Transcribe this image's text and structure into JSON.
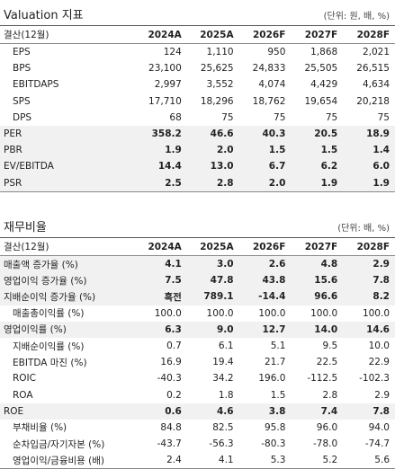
{
  "sections": [
    {
      "title": "Valuation 지표",
      "unit": "(단위: 원, 배, %)",
      "header": [
        "결산(12월)",
        "2024A",
        "2025A",
        "2026F",
        "2027F",
        "2028F"
      ],
      "rows": [
        {
          "label": "EPS",
          "values": [
            "124",
            "1,110",
            "950",
            "1,868",
            "2,021"
          ],
          "bold": false
        },
        {
          "label": "BPS",
          "values": [
            "23,100",
            "25,625",
            "24,833",
            "25,505",
            "26,515"
          ],
          "bold": false
        },
        {
          "label": "EBITDAPS",
          "values": [
            "2,997",
            "3,552",
            "4,074",
            "4,429",
            "4,634"
          ],
          "bold": false
        },
        {
          "label": "SPS",
          "values": [
            "17,710",
            "18,296",
            "18,762",
            "19,654",
            "20,218"
          ],
          "bold": false
        },
        {
          "label": "DPS",
          "values": [
            "68",
            "75",
            "75",
            "75",
            "75"
          ],
          "bold": false
        },
        {
          "label": "PER",
          "values": [
            "358.2",
            "46.6",
            "40.3",
            "20.5",
            "18.9"
          ],
          "bold": true
        },
        {
          "label": "PBR",
          "values": [
            "1.9",
            "2.0",
            "1.5",
            "1.5",
            "1.4"
          ],
          "bold": true
        },
        {
          "label": "EV/EBITDA",
          "values": [
            "14.4",
            "13.0",
            "6.7",
            "6.2",
            "6.0"
          ],
          "bold": true
        },
        {
          "label": "PSR",
          "values": [
            "2.5",
            "2.8",
            "2.0",
            "1.9",
            "1.9"
          ],
          "bold": true
        }
      ]
    },
    {
      "title": "재무비율",
      "unit": "(단위: 배, %)",
      "header": [
        "결산(12월)",
        "2024A",
        "2025A",
        "2026F",
        "2027F",
        "2028F"
      ],
      "rows": [
        {
          "label": "매출액 증가율 (%)",
          "values": [
            "4.1",
            "3.0",
            "2.6",
            "4.8",
            "2.9"
          ],
          "bold": true
        },
        {
          "label": "영업이익 증가율 (%)",
          "values": [
            "7.5",
            "47.8",
            "43.8",
            "15.6",
            "7.8"
          ],
          "bold": true
        },
        {
          "label": "지배순이익 증가율 (%)",
          "values": [
            "흑전",
            "789.1",
            "-14.4",
            "96.6",
            "8.2"
          ],
          "bold": true
        },
        {
          "label": "매출총이익률 (%)",
          "values": [
            "100.0",
            "100.0",
            "100.0",
            "100.0",
            "100.0"
          ],
          "bold": false
        },
        {
          "label": "영업이익률 (%)",
          "values": [
            "6.3",
            "9.0",
            "12.7",
            "14.0",
            "14.6"
          ],
          "bold": true
        },
        {
          "label": "지배순이익률 (%)",
          "values": [
            "0.7",
            "6.1",
            "5.1",
            "9.5",
            "10.0"
          ],
          "bold": false
        },
        {
          "label": "EBITDA 마진 (%)",
          "values": [
            "16.9",
            "19.4",
            "21.7",
            "22.5",
            "22.9"
          ],
          "bold": false
        },
        {
          "label": "ROIC",
          "values": [
            "-40.3",
            "34.2",
            "196.0",
            "-112.5",
            "-102.3"
          ],
          "bold": false
        },
        {
          "label": "ROA",
          "values": [
            "0.2",
            "1.8",
            "1.5",
            "2.8",
            "2.9"
          ],
          "bold": false
        },
        {
          "label": "ROE",
          "values": [
            "0.6",
            "4.6",
            "3.8",
            "7.4",
            "7.8"
          ],
          "bold": true
        },
        {
          "label": "부채비율 (%)",
          "values": [
            "84.8",
            "82.5",
            "95.8",
            "96.0",
            "94.0"
          ],
          "bold": false
        },
        {
          "label": "순차입금/자기자본 (%)",
          "values": [
            "-43.7",
            "-56.3",
            "-80.3",
            "-78.0",
            "-74.7"
          ],
          "bold": false
        },
        {
          "label": "영업이익/금융비용 (배)",
          "values": [
            "2.4",
            "4.1",
            "5.3",
            "5.2",
            "5.6"
          ],
          "bold": false
        }
      ]
    }
  ]
}
